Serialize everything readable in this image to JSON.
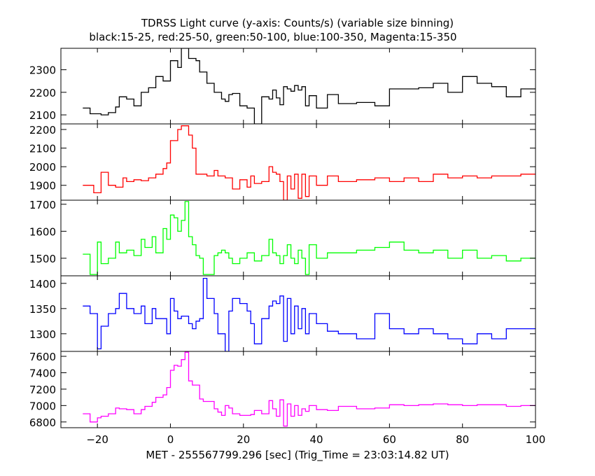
{
  "chart_data": {
    "type": "line",
    "style": "step",
    "title": "TDRSS Light curve (y-axis: Counts/s) (variable size binning)",
    "subtitle": "black:15-25, red:25-50, green:50-100, blue:100-350, Magenta:15-350",
    "xlabel": "MET - 255567799.296 [sec] (Trig_Time = 23:03:14.82 UT)",
    "xlim": [
      -30,
      100
    ],
    "xticks": [
      -20,
      0,
      20,
      40,
      60,
      80,
      100
    ],
    "xtick_labels": [
      "−20",
      "0",
      "20",
      "40",
      "60",
      "80",
      "100"
    ],
    "grid": false,
    "panels": [
      {
        "color": "#000000",
        "ylim": [
          2060,
          2395
        ],
        "yticks": [
          2100,
          2200,
          2300
        ],
        "ytick_labels": [
          "2100",
          "2200",
          "2300"
        ],
        "x": [
          -24,
          -22,
          -19,
          -17,
          -15,
          -14,
          -12,
          -10,
          -8,
          -6,
          -4,
          -2,
          0,
          2,
          3,
          5,
          7,
          8,
          10,
          12,
          14,
          15,
          16,
          17,
          19,
          21,
          23,
          25,
          27,
          28,
          29,
          30,
          31,
          32,
          33,
          34,
          35,
          36,
          37,
          38,
          40,
          43,
          46,
          51,
          56,
          60,
          68,
          72,
          76,
          80,
          84,
          88,
          92,
          96,
          100
        ],
        "y": [
          2130,
          2105,
          2100,
          2110,
          2135,
          2180,
          2170,
          2140,
          2200,
          2220,
          2270,
          2250,
          2340,
          2310,
          2395,
          2350,
          2340,
          2290,
          2240,
          2200,
          2170,
          2160,
          2190,
          2195,
          2140,
          2130,
          2060,
          2180,
          2170,
          2210,
          2175,
          2145,
          2225,
          2215,
          2205,
          2230,
          2210,
          2225,
          2140,
          2185,
          2130,
          2190,
          2150,
          2155,
          2140,
          2215,
          2220,
          2240,
          2200,
          2270,
          2240,
          2225,
          2180,
          2215,
          2205
        ]
      },
      {
        "color": "#ff0000",
        "ylim": [
          1820,
          2230
        ],
        "yticks": [
          1900,
          2000,
          2100,
          2200
        ],
        "ytick_labels": [
          "1900",
          "2000",
          "2100",
          "2200"
        ],
        "x": [
          -24,
          -21,
          -19,
          -17,
          -15,
          -13,
          -12,
          -10,
          -8,
          -6,
          -4,
          -2,
          -1,
          0,
          2,
          3,
          5,
          6,
          7,
          10,
          12,
          13,
          15,
          17,
          19,
          21,
          22,
          23,
          25,
          27,
          28,
          29,
          30,
          31,
          32,
          33,
          34,
          35,
          36,
          37,
          38,
          40,
          43,
          46,
          51,
          56,
          60,
          64,
          68,
          72,
          76,
          80,
          84,
          88,
          92,
          96,
          100
        ],
        "y": [
          1900,
          1860,
          1970,
          1900,
          1890,
          1940,
          1920,
          1930,
          1925,
          1940,
          1960,
          1990,
          2020,
          2140,
          2200,
          2220,
          2170,
          2100,
          1960,
          1950,
          1980,
          1950,
          1940,
          1880,
          1930,
          1890,
          1950,
          1910,
          1920,
          2000,
          1970,
          1960,
          1920,
          1820,
          1950,
          1880,
          1960,
          1830,
          1960,
          1840,
          1950,
          1900,
          1950,
          1920,
          1930,
          1940,
          1920,
          1940,
          1920,
          1960,
          1940,
          1950,
          1940,
          1950,
          1950,
          1960,
          1960
        ]
      },
      {
        "color": "#00ff00",
        "ylim": [
          1435,
          1715
        ],
        "yticks": [
          1500,
          1600,
          1700
        ],
        "ytick_labels": [
          "1500",
          "1600",
          "1700"
        ],
        "x": [
          -24,
          -22,
          -20,
          -19,
          -17,
          -15,
          -14,
          -12,
          -10,
          -8,
          -7,
          -5,
          -4,
          -2,
          -1,
          0,
          1,
          2,
          3,
          4,
          5,
          6,
          7,
          8,
          9,
          10,
          12,
          13,
          14,
          15,
          16,
          17,
          19,
          21,
          22,
          23,
          25,
          27,
          28,
          29,
          30,
          31,
          32,
          33,
          34,
          35,
          36,
          37,
          38,
          40,
          43,
          46,
          51,
          56,
          60,
          64,
          68,
          72,
          76,
          80,
          84,
          88,
          92,
          96,
          100
        ],
        "y": [
          1515,
          1440,
          1560,
          1480,
          1500,
          1560,
          1520,
          1530,
          1510,
          1570,
          1540,
          1580,
          1520,
          1610,
          1570,
          1660,
          1650,
          1600,
          1640,
          1710,
          1580,
          1550,
          1510,
          1500,
          1440,
          1440,
          1510,
          1520,
          1530,
          1520,
          1500,
          1480,
          1500,
          1520,
          1520,
          1490,
          1510,
          1570,
          1520,
          1510,
          1480,
          1510,
          1550,
          1500,
          1480,
          1530,
          1500,
          1440,
          1550,
          1500,
          1520,
          1520,
          1530,
          1540,
          1560,
          1530,
          1520,
          1530,
          1500,
          1530,
          1500,
          1510,
          1490,
          1500,
          1500
        ]
      },
      {
        "color": "#0000ff",
        "ylim": [
          1265,
          1415
        ],
        "yticks": [
          1300,
          1350,
          1400
        ],
        "ytick_labels": [
          "1300",
          "1350",
          "1400"
        ],
        "x": [
          -24,
          -22,
          -20,
          -19,
          -17,
          -15,
          -14,
          -12,
          -10,
          -8,
          -7,
          -5,
          -4,
          -2,
          -1,
          0,
          1,
          2,
          3,
          4,
          5,
          6,
          7,
          8,
          9,
          10,
          12,
          13,
          14,
          15,
          16,
          17,
          19,
          21,
          22,
          23,
          25,
          27,
          28,
          29,
          30,
          31,
          32,
          33,
          34,
          35,
          36,
          37,
          38,
          40,
          43,
          46,
          51,
          56,
          60,
          64,
          68,
          72,
          76,
          80,
          84,
          88,
          92,
          96,
          100
        ],
        "y": [
          1355,
          1340,
          1270,
          1315,
          1340,
          1350,
          1380,
          1350,
          1340,
          1355,
          1320,
          1350,
          1330,
          1330,
          1300,
          1370,
          1345,
          1330,
          1335,
          1335,
          1320,
          1310,
          1325,
          1330,
          1410,
          1370,
          1340,
          1300,
          1300,
          1265,
          1345,
          1370,
          1360,
          1345,
          1320,
          1280,
          1330,
          1355,
          1365,
          1360,
          1375,
          1285,
          1370,
          1300,
          1355,
          1310,
          1350,
          1300,
          1340,
          1320,
          1305,
          1300,
          1290,
          1340,
          1310,
          1300,
          1310,
          1300,
          1290,
          1280,
          1300,
          1290,
          1310,
          1310,
          1310
        ]
      },
      {
        "color": "#ff00ff",
        "ylim": [
          6730,
          7660
        ],
        "yticks": [
          6800,
          7000,
          7200,
          7400,
          7600
        ],
        "ytick_labels": [
          "6800",
          "7000",
          "7200",
          "7400",
          "7600"
        ],
        "x": [
          -24,
          -22,
          -20,
          -19,
          -17,
          -15,
          -14,
          -12,
          -10,
          -8,
          -7,
          -5,
          -4,
          -2,
          -1,
          0,
          1,
          2,
          3,
          4,
          5,
          6,
          7,
          8,
          9,
          10,
          12,
          13,
          14,
          15,
          16,
          17,
          19,
          21,
          22,
          23,
          25,
          27,
          28,
          29,
          30,
          31,
          32,
          33,
          34,
          35,
          36,
          37,
          38,
          40,
          43,
          46,
          51,
          56,
          60,
          64,
          68,
          72,
          76,
          80,
          84,
          88,
          92,
          96,
          100
        ],
        "y": [
          6900,
          6800,
          6850,
          6870,
          6900,
          6970,
          6960,
          6950,
          6900,
          6950,
          6990,
          7040,
          7100,
          7130,
          7220,
          7430,
          7490,
          7480,
          7560,
          7650,
          7300,
          7250,
          7250,
          7080,
          7050,
          7050,
          6960,
          6920,
          6880,
          7000,
          6970,
          6900,
          6880,
          6880,
          6890,
          6940,
          6900,
          7060,
          6960,
          6870,
          7070,
          6750,
          7020,
          6870,
          7000,
          6880,
          6960,
          6930,
          7000,
          6950,
          6940,
          6990,
          6960,
          6970,
          7010,
          7000,
          7010,
          7020,
          7010,
          7000,
          7010,
          7010,
          6990,
          7000,
          6970
        ]
      }
    ]
  }
}
